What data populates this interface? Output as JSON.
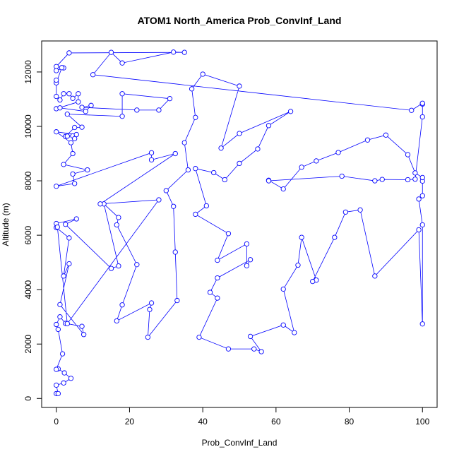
{
  "chart_data": {
    "type": "line",
    "markers": true,
    "title": "ATOM1 North_America Prob_ConvInf_Land",
    "x_label": "Prob_ConvInf_Land",
    "y_label": "Altitude (m)",
    "color": "#0000ff",
    "xlim": [
      -4,
      104
    ],
    "ylim": [
      -330,
      13140
    ],
    "xticks": [
      0,
      20,
      40,
      60,
      80,
      100
    ],
    "yticks": [
      0,
      2000,
      4000,
      6000,
      8000,
      10000,
      12000
    ],
    "x": [
      0,
      0.5,
      0,
      2,
      4,
      2.2,
      0.5,
      0,
      1.7,
      0.5,
      0,
      1,
      2.5,
      7,
      7.5,
      1,
      3.5,
      2,
      3.5,
      0,
      0,
      5.5,
      2.5,
      15,
      17,
      13,
      17,
      16.5,
      22,
      18,
      16.5,
      26,
      25.5,
      25,
      33,
      32.5,
      32,
      30,
      36,
      35,
      38,
      37,
      40,
      50,
      45,
      50,
      64,
      58,
      55,
      50,
      46,
      43,
      38,
      41,
      38,
      47,
      44,
      52,
      52,
      53,
      44,
      42,
      44,
      39,
      47,
      54,
      56,
      53,
      62,
      65,
      62,
      66,
      67,
      71,
      70,
      76,
      79,
      83,
      87,
      99,
      100,
      100,
      99,
      100,
      100,
      100,
      98,
      96,
      90,
      85,
      77,
      71,
      67,
      62,
      58,
      58,
      78,
      87,
      89,
      96,
      98,
      100,
      100,
      100,
      97,
      10,
      15,
      18,
      32,
      35,
      3.5,
      0,
      0,
      2,
      1.5,
      0,
      0,
      0,
      1,
      2,
      3.5,
      4.5,
      6,
      6,
      0,
      1,
      8,
      9.5,
      7,
      22,
      28,
      31,
      18,
      18,
      3,
      7,
      5,
      2.5,
      3,
      4.5,
      5,
      5.5,
      0,
      4,
      4.5,
      2,
      8.5,
      4.5,
      5,
      0,
      26,
      26,
      32.5,
      12,
      28,
      3,
      0.3
    ],
    "values": [
      180,
      180,
      490,
      570,
      740,
      940,
      1090,
      1070,
      1640,
      2540,
      2720,
      3000,
      2760,
      2650,
      2350,
      3450,
      4950,
      4500,
      5900,
      6280,
      6430,
      6600,
      6400,
      4780,
      4870,
      7150,
      6650,
      6380,
      4920,
      3440,
      2850,
      3510,
      3270,
      2250,
      3600,
      5380,
      7060,
      7640,
      8400,
      9400,
      10330,
      11380,
      11920,
      11480,
      9200,
      9740,
      10550,
      10030,
      9170,
      8640,
      8040,
      8300,
      8450,
      7080,
      6770,
      6060,
      5080,
      5680,
      4880,
      5100,
      4430,
      3900,
      3690,
      2250,
      1820,
      1820,
      1720,
      2280,
      2700,
      2420,
      4020,
      4900,
      5920,
      4350,
      4300,
      5920,
      6850,
      6930,
      4500,
      6200,
      2740,
      6380,
      7330,
      7450,
      7990,
      8120,
      8290,
      8960,
      9680,
      9500,
      9040,
      8730,
      8500,
      7700,
      8020,
      8000,
      8170,
      8000,
      8050,
      8040,
      8060,
      10350,
      10820,
      10850,
      10590,
      11900,
      12720,
      12330,
      12730,
      12720,
      12700,
      12200,
      12050,
      12150,
      12160,
      11600,
      11700,
      11100,
      10970,
      11200,
      11200,
      11030,
      11200,
      10900,
      10650,
      10680,
      10550,
      10770,
      10700,
      10600,
      10600,
      11020,
      11200,
      10370,
      10450,
      9970,
      9960,
      9630,
      9640,
      9650,
      9550,
      9700,
      9800,
      9400,
      9000,
      8600,
      8400,
      8250,
      7900,
      7800,
      9030,
      8770,
      9000,
      7150,
      7300,
      2750,
      6300
    ]
  }
}
